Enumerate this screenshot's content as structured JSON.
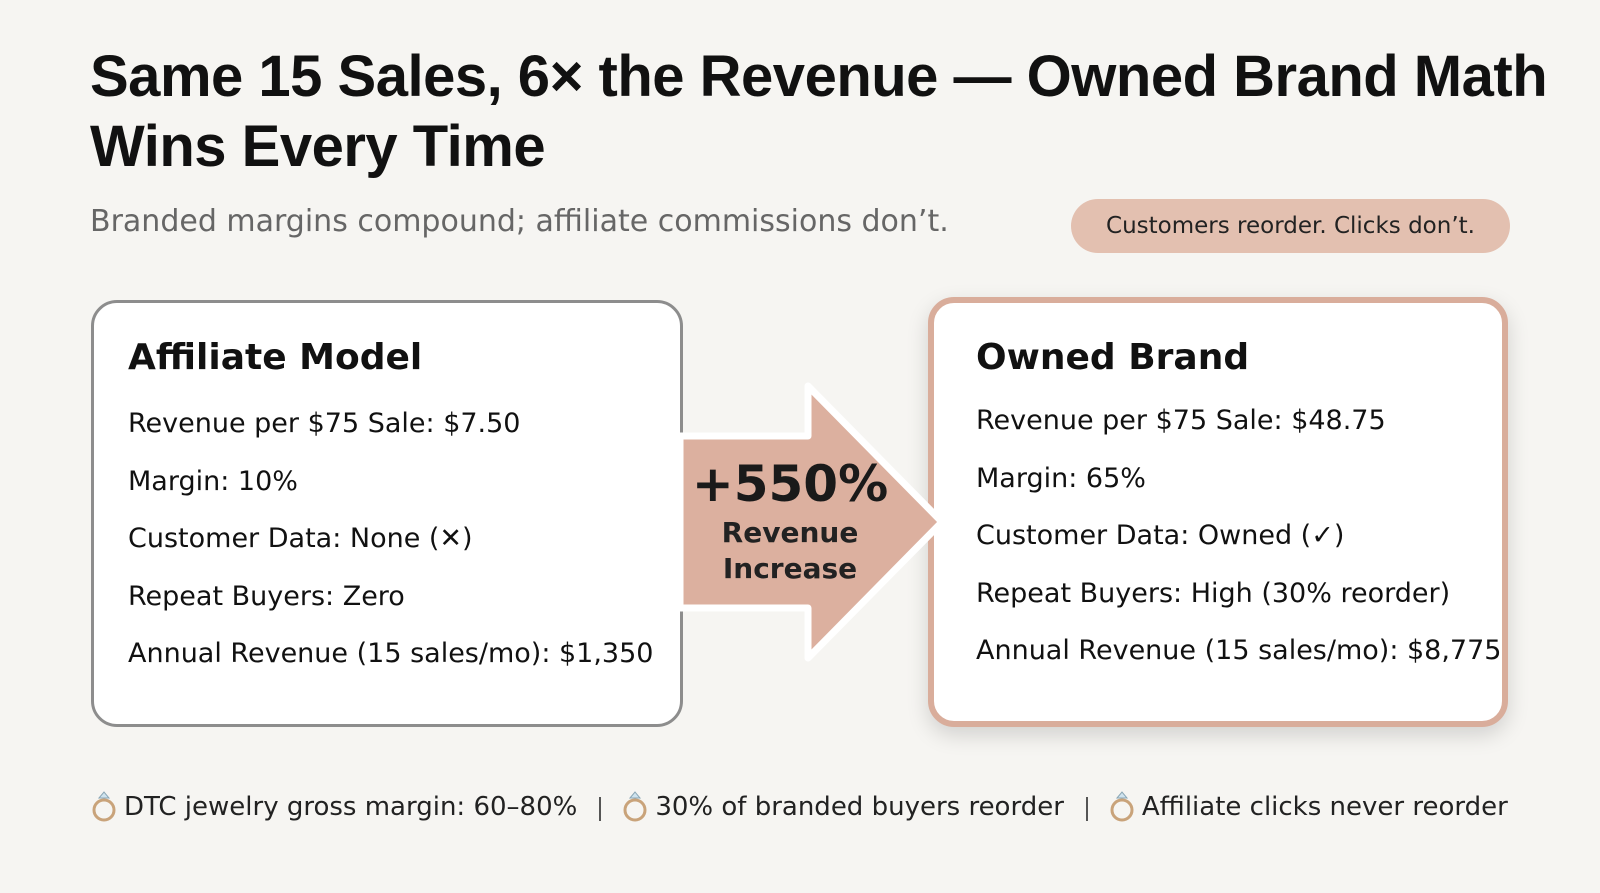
{
  "header": {
    "title": "Same 15 Sales, 6× the Revenue — Owned Brand Math Wins Every Time",
    "subtitle": "Branded margins compound; affiliate commissions don’t.",
    "badge": "Customers reorder. Clicks don’t."
  },
  "cards": [
    {
      "title": "Affiliate Model",
      "items": [
        "Revenue per $75 Sale: $7.50",
        "Margin: 10%",
        "Customer Data: None (✕)",
        "Repeat Buyers: Zero",
        "Annual Revenue (15 sales/mo): $1,350"
      ]
    },
    {
      "title": "Owned Brand",
      "items": [
        "Revenue per $75 Sale: $48.75",
        "Margin: 65%",
        "Customer Data: Owned (✓)",
        "Repeat Buyers: High (30% reorder)",
        "Annual Revenue (15 sales/mo): $8,775"
      ]
    }
  ],
  "arrow": {
    "value": "+550%",
    "label": "Revenue Increase"
  },
  "footer": {
    "items": [
      "DTC jewelry gross margin: 60–80%",
      "30% of branded buyers reorder",
      "Affiliate clicks never reorder"
    ]
  }
}
